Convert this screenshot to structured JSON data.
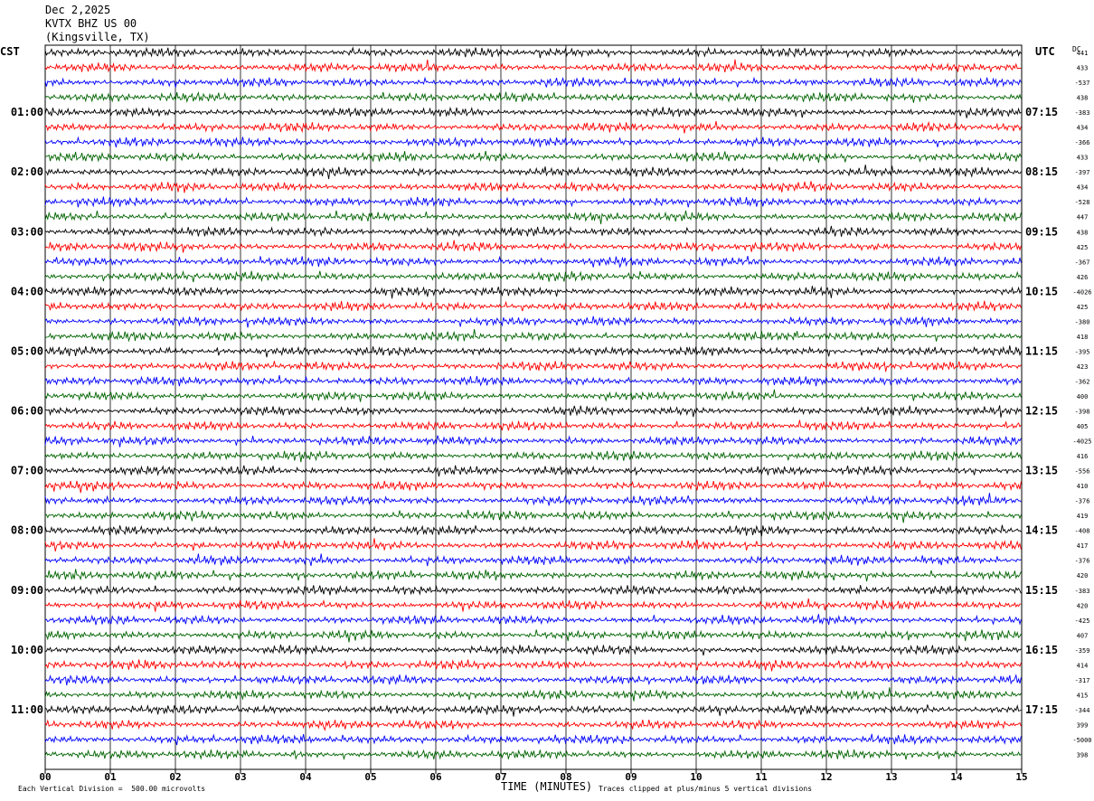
{
  "header": {
    "date": "Dec 2,2025",
    "station": "KVTX BHZ US 00",
    "location": "(Kingsville, TX)"
  },
  "left_tz": "CST",
  "right_tz": "UTC",
  "dc_label": "DC",
  "footer": {
    "scale_note": "Each Vertical Division =  500.00 microvolts",
    "clip_note": "Traces clipped at plus/minus 5 vertical divisions",
    "xlabel": "TIME (MINUTES)"
  },
  "colors": {
    "trace_cycle": [
      "#000000",
      "#ff0000",
      "#0000ff",
      "#006400"
    ],
    "grid": "#000000"
  },
  "chart_data": {
    "type": "line",
    "title": "KVTX BHZ US 00 (Kingsville, TX) Dec 2,2025",
    "xlabel": "TIME (MINUTES)",
    "xlim": [
      0,
      15
    ],
    "x_ticks": [
      "00",
      "01",
      "02",
      "03",
      "04",
      "05",
      "06",
      "07",
      "08",
      "09",
      "10",
      "11",
      "12",
      "13",
      "14",
      "15"
    ],
    "rows": 48,
    "minutes_per_row": 15,
    "left_hour_labels": [
      "01:00",
      "02:00",
      "03:00",
      "04:00",
      "05:00",
      "06:00",
      "07:00",
      "08:00",
      "09:00",
      "10:00",
      "11:00"
    ],
    "right_hour_labels": [
      "07:15",
      "08:15",
      "09:15",
      "10:15",
      "11:15",
      "12:15",
      "13:15",
      "14:15",
      "15:15",
      "16:15",
      "17:15"
    ],
    "dc_offsets": [
      "441",
      "433",
      "-537",
      "438",
      "-383",
      "434",
      "-366",
      "433",
      "-397",
      "434",
      "-528",
      "447",
      "438",
      "425",
      "-367",
      "426",
      "-4026",
      "425",
      "-380",
      "418",
      "-395",
      "423",
      "-362",
      "400",
      "-398",
      "405",
      "-4025",
      "416",
      "-556",
      "410",
      "-376",
      "419",
      "-408",
      "417",
      "-376",
      "420",
      "-383",
      "420",
      "-425",
      "407",
      "-359",
      "414",
      "-317",
      "415",
      "-344",
      "399",
      "-5000",
      "398"
    ]
  }
}
